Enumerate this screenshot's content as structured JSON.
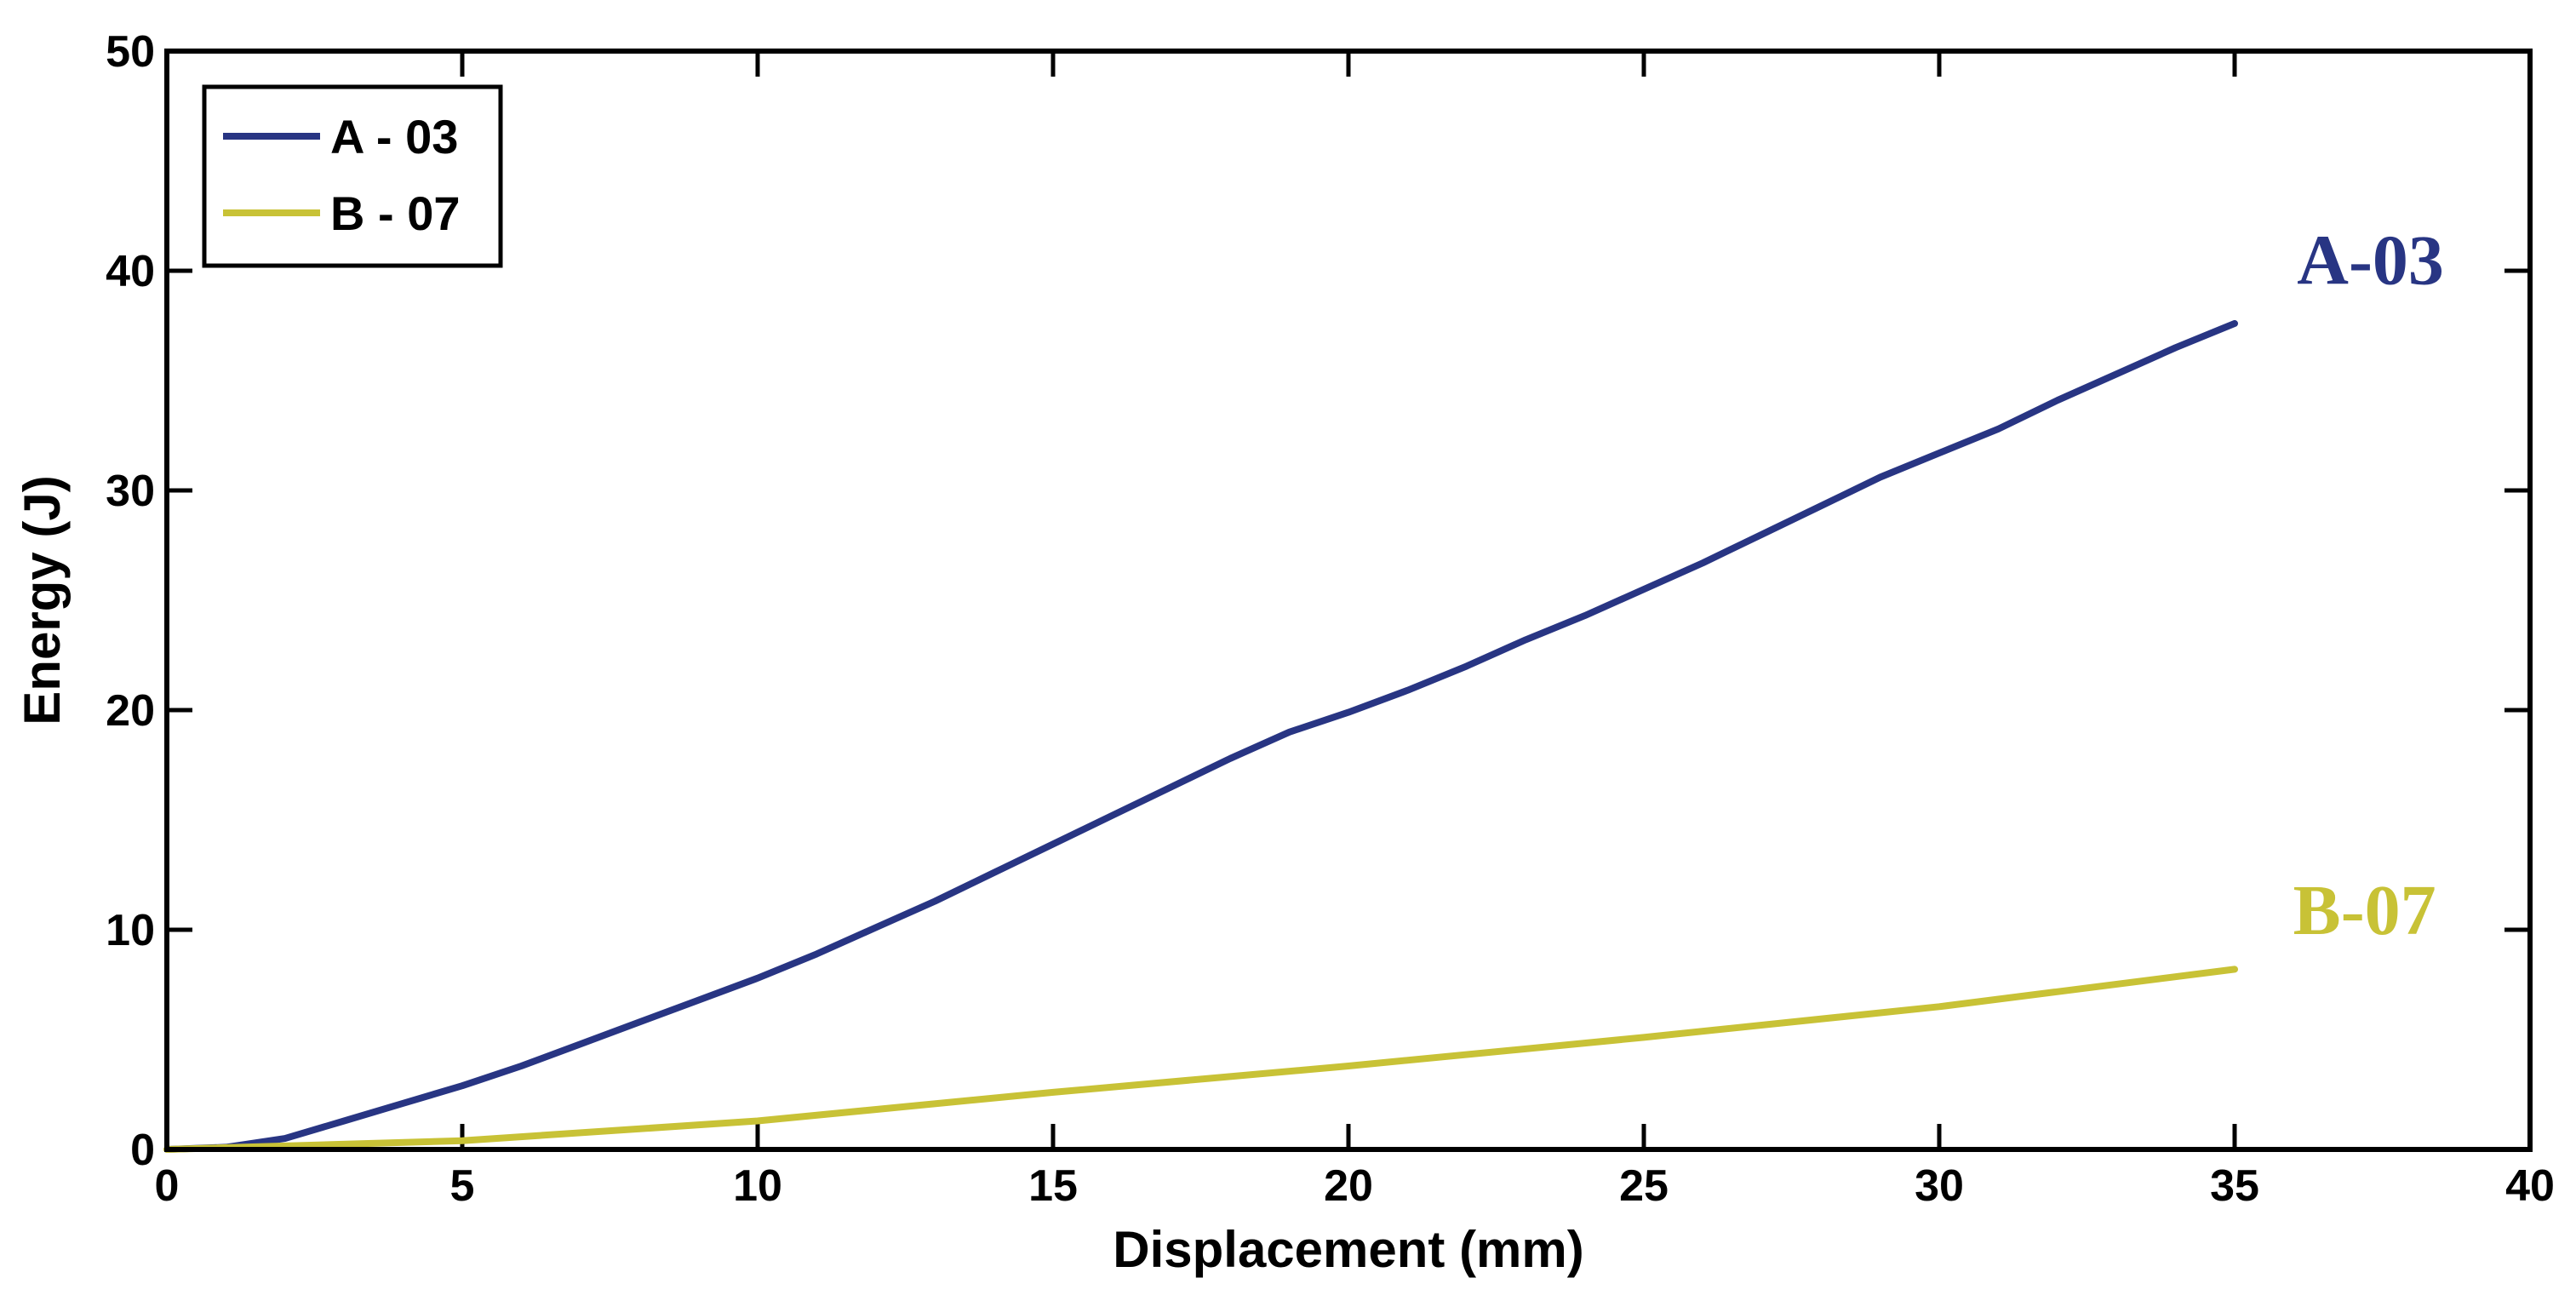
{
  "chart_data": {
    "type": "line",
    "title": "",
    "xlabel": "Displacement (mm)",
    "ylabel": "Energy (J)",
    "xlim": [
      0,
      40
    ],
    "ylim": [
      0,
      50
    ],
    "xticks": [
      "0",
      "5",
      "10",
      "15",
      "20",
      "25",
      "30",
      "35",
      "40"
    ],
    "yticks": [
      "0",
      "10",
      "20",
      "30",
      "40",
      "50"
    ],
    "grid": false,
    "legend_position": "top-left",
    "series": [
      {
        "name": "A - 03",
        "color": "#283583",
        "x": [
          0,
          1,
          2,
          3,
          4,
          5,
          6,
          7,
          8,
          9,
          10,
          11,
          12,
          13,
          14,
          15,
          16,
          17,
          18,
          19,
          20,
          21,
          22,
          23,
          24,
          25,
          26,
          27,
          28,
          29,
          30,
          31,
          32,
          33,
          34,
          35
        ],
        "y": [
          0,
          0.1,
          0.5,
          1.3,
          2.1,
          2.9,
          3.8,
          4.8,
          5.8,
          6.8,
          7.8,
          8.9,
          10.1,
          11.3,
          12.6,
          13.9,
          15.2,
          16.5,
          17.8,
          19.0,
          19.9,
          20.9,
          22.0,
          23.2,
          24.3,
          25.5,
          26.7,
          28.0,
          29.3,
          30.6,
          31.7,
          32.8,
          34.1,
          35.3,
          36.5,
          37.6
        ]
      },
      {
        "name": "B - 07",
        "color": "#c8c236",
        "x": [
          0,
          5,
          10,
          15,
          20,
          25,
          30,
          35
        ],
        "y": [
          0,
          0.4,
          1.3,
          2.6,
          3.8,
          5.1,
          6.5,
          8.2
        ]
      }
    ],
    "annotations": [
      {
        "text": "A-03",
        "x": 37.3,
        "y": 39.4,
        "color": "#283583"
      },
      {
        "text": "B-07",
        "x": 37.2,
        "y": 9.8,
        "color": "#c8c236"
      }
    ]
  }
}
